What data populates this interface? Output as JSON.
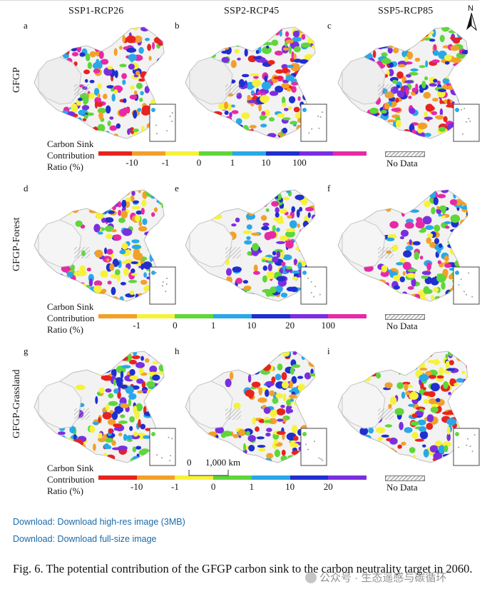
{
  "columns": [
    "SSP1-RCP26",
    "SSP2-RCP45",
    "SSP5-RCP85"
  ],
  "north_label": "N",
  "rows": [
    {
      "label": "GFGP",
      "panels": [
        "a",
        "b",
        "c"
      ],
      "legend_title": [
        "Carbon Sink",
        "Contribution",
        "Ratio (%)"
      ],
      "colors": [
        "#e8231f",
        "#f2a02a",
        "#f6f23a",
        "#5fd63a",
        "#29a8e8",
        "#1f2fd0",
        "#7b2ee0",
        "#e62aa6"
      ],
      "ticks": [
        "-10",
        "-1",
        "0",
        "1",
        "10",
        "100"
      ],
      "nodata": "No Data"
    },
    {
      "label": "GFGP-Forest",
      "panels": [
        "d",
        "e",
        "f"
      ],
      "legend_title": [
        "Carbon Sink",
        "Contribution",
        "Ratio (%)"
      ],
      "colors": [
        "#f2a02a",
        "#f6f23a",
        "#5fd63a",
        "#29a8e8",
        "#1f2fd0",
        "#7b2ee0",
        "#e62aa6"
      ],
      "ticks": [
        "-1",
        "0",
        "1",
        "10",
        "20",
        "100"
      ],
      "nodata": "No Data"
    },
    {
      "label": "GFGP-Grassland",
      "panels": [
        "g",
        "h",
        "i"
      ],
      "legend_title": [
        "Carbon Sink",
        "Contribution",
        "Ratio (%)"
      ],
      "colors": [
        "#e8231f",
        "#f2a02a",
        "#f6f23a",
        "#5fd63a",
        "#29a8e8",
        "#1f2fd0",
        "#7b2ee0"
      ],
      "ticks": [
        "-10",
        "-1",
        "0",
        "1",
        "10",
        "20"
      ],
      "nodata": "No Data"
    }
  ],
  "scalebar": {
    "zero": "0",
    "distance": "1,000 km"
  },
  "links": [
    "Download: Download high-res image (3MB)",
    "Download: Download full-size image"
  ],
  "caption": "Fig. 6. The potential contribution of the GFGP carbon sink to the carbon neutrality target in 2060.",
  "watermark": "公众号 · 生态遥感与碳循环"
}
